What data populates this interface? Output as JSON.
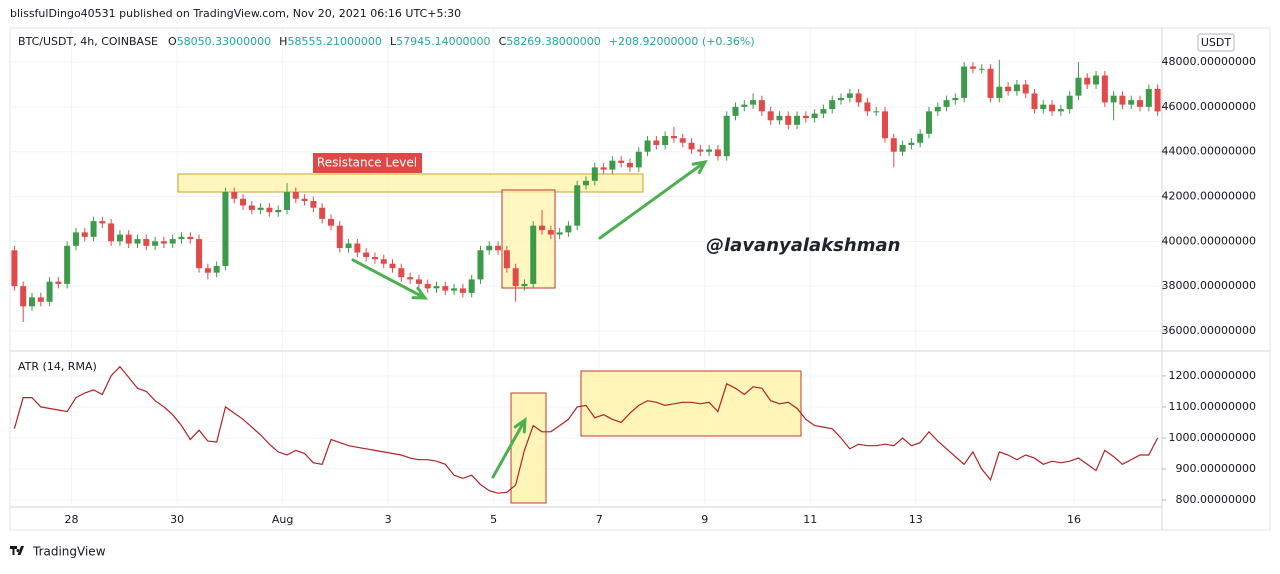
{
  "header": {
    "published": "blissfulDingo40531 published on TradingView.com, Nov 20, 2021 06:16 UTC+5:30",
    "footer": "TradingView"
  },
  "chart_data": [
    {
      "type": "candlestick",
      "title": "BTC/USDT, 4h, COINBASE",
      "ohlc_legend": [
        {
          "key": "O",
          "value": "58050.33000000"
        },
        {
          "key": "H",
          "value": "58555.21000000"
        },
        {
          "key": "L",
          "value": "57945.14000000"
        },
        {
          "key": "C",
          "value": "58269.38000000"
        }
      ],
      "change": "+208.92000000 (+0.36%)",
      "currency": "USDT",
      "annotations": [
        "Resistance Level"
      ],
      "watermark": "@lavanyalakshman",
      "up_color": "#3d9a4a",
      "down_color": "#e04a4a",
      "open": [
        39600,
        38000,
        37100,
        37500,
        37300,
        38200,
        38100,
        39800,
        40400,
        40200,
        40900,
        40800,
        40000,
        40300,
        39900,
        40100,
        39800,
        40000,
        39900,
        40100,
        40200,
        40100,
        38800,
        38600,
        38900,
        42200,
        41900,
        41600,
        41400,
        41500,
        41300,
        41400,
        42200,
        41900,
        41800,
        41500,
        41000,
        40700,
        39700,
        39900,
        39500,
        39300,
        39200,
        39000,
        38800,
        38400,
        38300,
        38100,
        37900,
        38000,
        37800,
        37900,
        37700,
        38300,
        39600,
        39800,
        39600,
        38800,
        38000,
        38100,
        40700,
        40500,
        40300,
        40400,
        40700,
        42500,
        42700,
        43300,
        43200,
        43600,
        43500,
        43300,
        44000,
        44500,
        44300,
        44700,
        44600,
        44400,
        44100,
        44000,
        44100,
        43800,
        45600,
        46000,
        46100,
        46300,
        45800,
        45400,
        45600,
        45200,
        45600,
        45500,
        45700,
        45900,
        46300,
        46400,
        46600,
        46200,
        45800,
        45800,
        44600,
        44000,
        44300,
        44400,
        44800,
        45800,
        46000,
        46300,
        46400,
        47800,
        47700,
        47700,
        46400,
        46900,
        46700,
        47000,
        46600,
        45900,
        46100,
        45800,
        45900,
        46500,
        47300,
        47000,
        47400,
        46200,
        46500,
        46100,
        46300,
        46000,
        46800
      ],
      "high": [
        39800,
        38200,
        37700,
        37700,
        38400,
        38400,
        40000,
        40600,
        40600,
        41100,
        41100,
        41000,
        40500,
        40500,
        40300,
        40300,
        40200,
        40200,
        40300,
        40400,
        40400,
        40300,
        39000,
        39100,
        42400,
        42400,
        42100,
        41800,
        41700,
        41700,
        41600,
        42600,
        42400,
        42100,
        42000,
        41700,
        41200,
        40900,
        40100,
        40100,
        39700,
        39500,
        39400,
        39200,
        39000,
        38600,
        38500,
        38300,
        38200,
        38200,
        38100,
        38100,
        38500,
        39800,
        40000,
        40000,
        39800,
        39000,
        38300,
        40900,
        41400,
        40700,
        40600,
        40900,
        42700,
        42900,
        43500,
        43500,
        43800,
        43800,
        43700,
        44200,
        44700,
        44700,
        44900,
        45100,
        44800,
        44600,
        44300,
        44300,
        44300,
        45800,
        46200,
        46300,
        46600,
        46500,
        46000,
        45800,
        45800,
        45800,
        45800,
        45900,
        46100,
        46500,
        46600,
        46800,
        46800,
        46400,
        46000,
        46000,
        44800,
        44500,
        44600,
        45000,
        46000,
        46200,
        46500,
        46600,
        48000,
        48000,
        47900,
        47900,
        48100,
        47100,
        47200,
        47200,
        46800,
        46300,
        46300,
        46100,
        46700,
        48000,
        47500,
        47600,
        47600,
        46700,
        46700,
        46500,
        46500,
        47000,
        47000
      ],
      "low": [
        37800,
        36400,
        36900,
        37100,
        37100,
        37900,
        37900,
        39600,
        40000,
        40000,
        40600,
        39800,
        39800,
        39700,
        39700,
        39600,
        39600,
        39700,
        39700,
        39900,
        39900,
        38600,
        38300,
        38400,
        38700,
        41700,
        41400,
        41200,
        41200,
        41100,
        41100,
        41200,
        41700,
        41600,
        41300,
        40800,
        40500,
        39500,
        39500,
        39300,
        39100,
        39000,
        38800,
        38600,
        38200,
        38100,
        37900,
        37700,
        37700,
        37600,
        37600,
        37500,
        37500,
        38100,
        39400,
        39400,
        38600,
        37300,
        37800,
        37900,
        40300,
        40100,
        40100,
        40200,
        40500,
        42300,
        42500,
        43000,
        43000,
        43300,
        43100,
        43100,
        43800,
        44100,
        44100,
        44400,
        44200,
        43900,
        43800,
        43800,
        43600,
        43600,
        45400,
        45800,
        45900,
        45600,
        45200,
        45200,
        45000,
        45000,
        45300,
        45300,
        45500,
        45700,
        46100,
        46200,
        46000,
        45600,
        45600,
        44400,
        43300,
        43800,
        44100,
        44200,
        44600,
        45600,
        45800,
        46100,
        46200,
        47500,
        47500,
        46200,
        46200,
        46500,
        46500,
        46400,
        45700,
        45700,
        45600,
        45600,
        45700,
        46300,
        46800,
        46800,
        46000,
        45400,
        45900,
        45900,
        45800,
        45800,
        45600
      ],
      "close": [
        38000,
        37100,
        37500,
        37300,
        38200,
        38100,
        39800,
        40400,
        40200,
        40900,
        40800,
        40000,
        40300,
        39900,
        40100,
        39800,
        40000,
        39900,
        40100,
        40200,
        40100,
        38800,
        38600,
        38900,
        42200,
        41900,
        41600,
        41400,
        41500,
        41300,
        41400,
        42200,
        41900,
        41800,
        41500,
        41000,
        40700,
        39700,
        39900,
        39500,
        39300,
        39200,
        39000,
        38800,
        38400,
        38300,
        38100,
        37900,
        38000,
        37800,
        37900,
        37700,
        38300,
        39600,
        39800,
        39600,
        38800,
        38000,
        38100,
        40700,
        40500,
        40300,
        40400,
        40700,
        42500,
        42700,
        43300,
        43200,
        43600,
        43500,
        43300,
        44000,
        44500,
        44300,
        44700,
        44600,
        44400,
        44100,
        44000,
        44100,
        43800,
        45600,
        46000,
        46100,
        46300,
        45800,
        45400,
        45600,
        45200,
        45600,
        45500,
        45700,
        45900,
        46300,
        46400,
        46600,
        46200,
        45800,
        45800,
        44600,
        44000,
        44300,
        44400,
        44800,
        45800,
        46000,
        46300,
        46400,
        47800,
        47700,
        47700,
        46400,
        46900,
        46700,
        47000,
        46600,
        45900,
        46100,
        45800,
        45900,
        46500,
        47300,
        47000,
        47400,
        46200,
        46500,
        46100,
        46300,
        46000,
        46800,
        45800
      ],
      "xlim": [
        0,
        131
      ],
      "ylim": [
        35150,
        49520
      ],
      "yticks": [
        {
          "value": 36000,
          "label": "36000.00000000"
        },
        {
          "value": 38000,
          "label": "38000.00000000"
        },
        {
          "value": 40000,
          "label": "40000.00000000"
        },
        {
          "value": 42000,
          "label": "42000.00000000"
        },
        {
          "value": 44000,
          "label": "44000.00000000"
        },
        {
          "value": 46000,
          "label": "46000.00000000"
        },
        {
          "value": 48000,
          "label": "48000.00000000"
        }
      ],
      "grid": true
    },
    {
      "type": "line",
      "title": "ATR (14, RMA)",
      "color": "#b22222",
      "values": [
        1030,
        1130,
        1130,
        1100,
        1095,
        1090,
        1085,
        1130,
        1145,
        1155,
        1140,
        1200,
        1230,
        1195,
        1160,
        1150,
        1120,
        1100,
        1075,
        1040,
        995,
        1025,
        990,
        987,
        1100,
        1080,
        1060,
        1035,
        1010,
        980,
        955,
        945,
        960,
        950,
        920,
        915,
        995,
        985,
        975,
        970,
        965,
        960,
        955,
        950,
        945,
        935,
        930,
        930,
        925,
        915,
        880,
        870,
        880,
        850,
        830,
        822,
        825,
        848,
        960,
        1040,
        1020,
        1020,
        1040,
        1060,
        1100,
        1105,
        1065,
        1075,
        1060,
        1050,
        1080,
        1105,
        1120,
        1115,
        1105,
        1110,
        1115,
        1115,
        1110,
        1115,
        1085,
        1175,
        1160,
        1140,
        1165,
        1160,
        1120,
        1110,
        1115,
        1095,
        1060,
        1040,
        1035,
        1030,
        1000,
        965,
        980,
        975,
        975,
        980,
        975,
        1000,
        975,
        985,
        1020,
        990,
        965,
        940,
        915,
        955,
        900,
        865,
        955,
        945,
        930,
        945,
        935,
        915,
        925,
        920,
        925,
        935,
        915,
        895,
        960,
        940,
        915,
        930,
        945,
        945,
        1000
      ],
      "xlim": [
        0,
        131
      ],
      "ylim": [
        784,
        1277
      ],
      "xticks": [
        {
          "value": 7,
          "label": "28"
        },
        {
          "value": 19,
          "label": "30"
        },
        {
          "value": 31,
          "label": "Aug"
        },
        {
          "value": 43,
          "label": "3"
        },
        {
          "value": 55,
          "label": "5"
        },
        {
          "value": 67,
          "label": "7"
        },
        {
          "value": 79,
          "label": "9"
        },
        {
          "value": 91,
          "label": "11"
        },
        {
          "value": 103,
          "label": "13"
        },
        {
          "value": 121,
          "label": "16"
        }
      ],
      "yticks": [
        {
          "value": 800,
          "label": "800.00000000"
        },
        {
          "value": 900,
          "label": "900.00000000"
        },
        {
          "value": 1000,
          "label": "1000.00000000"
        },
        {
          "value": 1100,
          "label": "1100.00000000"
        },
        {
          "value": 1200,
          "label": "1200.00000000"
        }
      ],
      "grid": true
    }
  ]
}
